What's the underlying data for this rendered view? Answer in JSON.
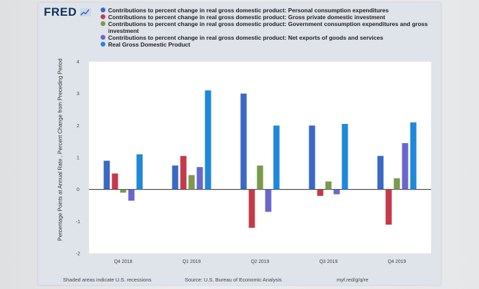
{
  "header": {
    "logo_text": "FRED"
  },
  "legend": [
    {
      "label": "Contributions to percent change in real gross domestic product: Personal consumption expenditures",
      "color": "#3a68c4"
    },
    {
      "label": "Contributions to percent change in real gross domestic product: Gross private domestic investment",
      "color": "#c43a4b"
    },
    {
      "label": "Contributions to percent change in real gross domestic product: Government consumption expenditures and gross investment",
      "color": "#7a9a4c"
    },
    {
      "label": "Contributions to percent change in real gross domestic product: Net exports of goods and services",
      "color": "#6a66cc"
    },
    {
      "label": "Real Gross Domestic Product",
      "color": "#1f88d8"
    }
  ],
  "footer": {
    "recessions_note": "Shaded areas indicate U.S. recessions",
    "source": "Source: U.S. Bureau of Economic Analysis",
    "url": "myf.red/g/q/re"
  },
  "chart_data": {
    "type": "bar",
    "title": "",
    "xlabel": "",
    "ylabel": "Percentage Points at Annual Rate , Percent Change from Preceding Period",
    "ylim": [
      -2,
      4
    ],
    "yticks": [
      -2,
      -1,
      0,
      1,
      2,
      3,
      4
    ],
    "ytick_labels": [
      "-2",
      "-1",
      "0",
      "1",
      "2",
      "3",
      "4"
    ],
    "categories": [
      "Q4 2018",
      "Q1 2019",
      "Q2 2019",
      "Q3 2019",
      "Q4 2019"
    ],
    "series": [
      {
        "name": "Personal consumption expenditures",
        "color": "#3a68c4",
        "values": [
          0.9,
          0.75,
          3.0,
          2.0,
          1.05
        ]
      },
      {
        "name": "Gross private domestic investment",
        "color": "#c43a4b",
        "values": [
          0.5,
          1.05,
          -1.2,
          -0.2,
          -1.1
        ]
      },
      {
        "name": "Government consumption expenditures and gross investment",
        "color": "#7a9a4c",
        "values": [
          -0.1,
          0.45,
          0.75,
          0.25,
          0.35
        ]
      },
      {
        "name": "Net exports of goods and services",
        "color": "#6a66cc",
        "values": [
          -0.35,
          0.7,
          -0.7,
          -0.15,
          1.45
        ]
      },
      {
        "name": "Real Gross Domestic Product",
        "color": "#1f88d8",
        "values": [
          1.1,
          3.1,
          2.0,
          2.05,
          2.1
        ]
      }
    ]
  }
}
